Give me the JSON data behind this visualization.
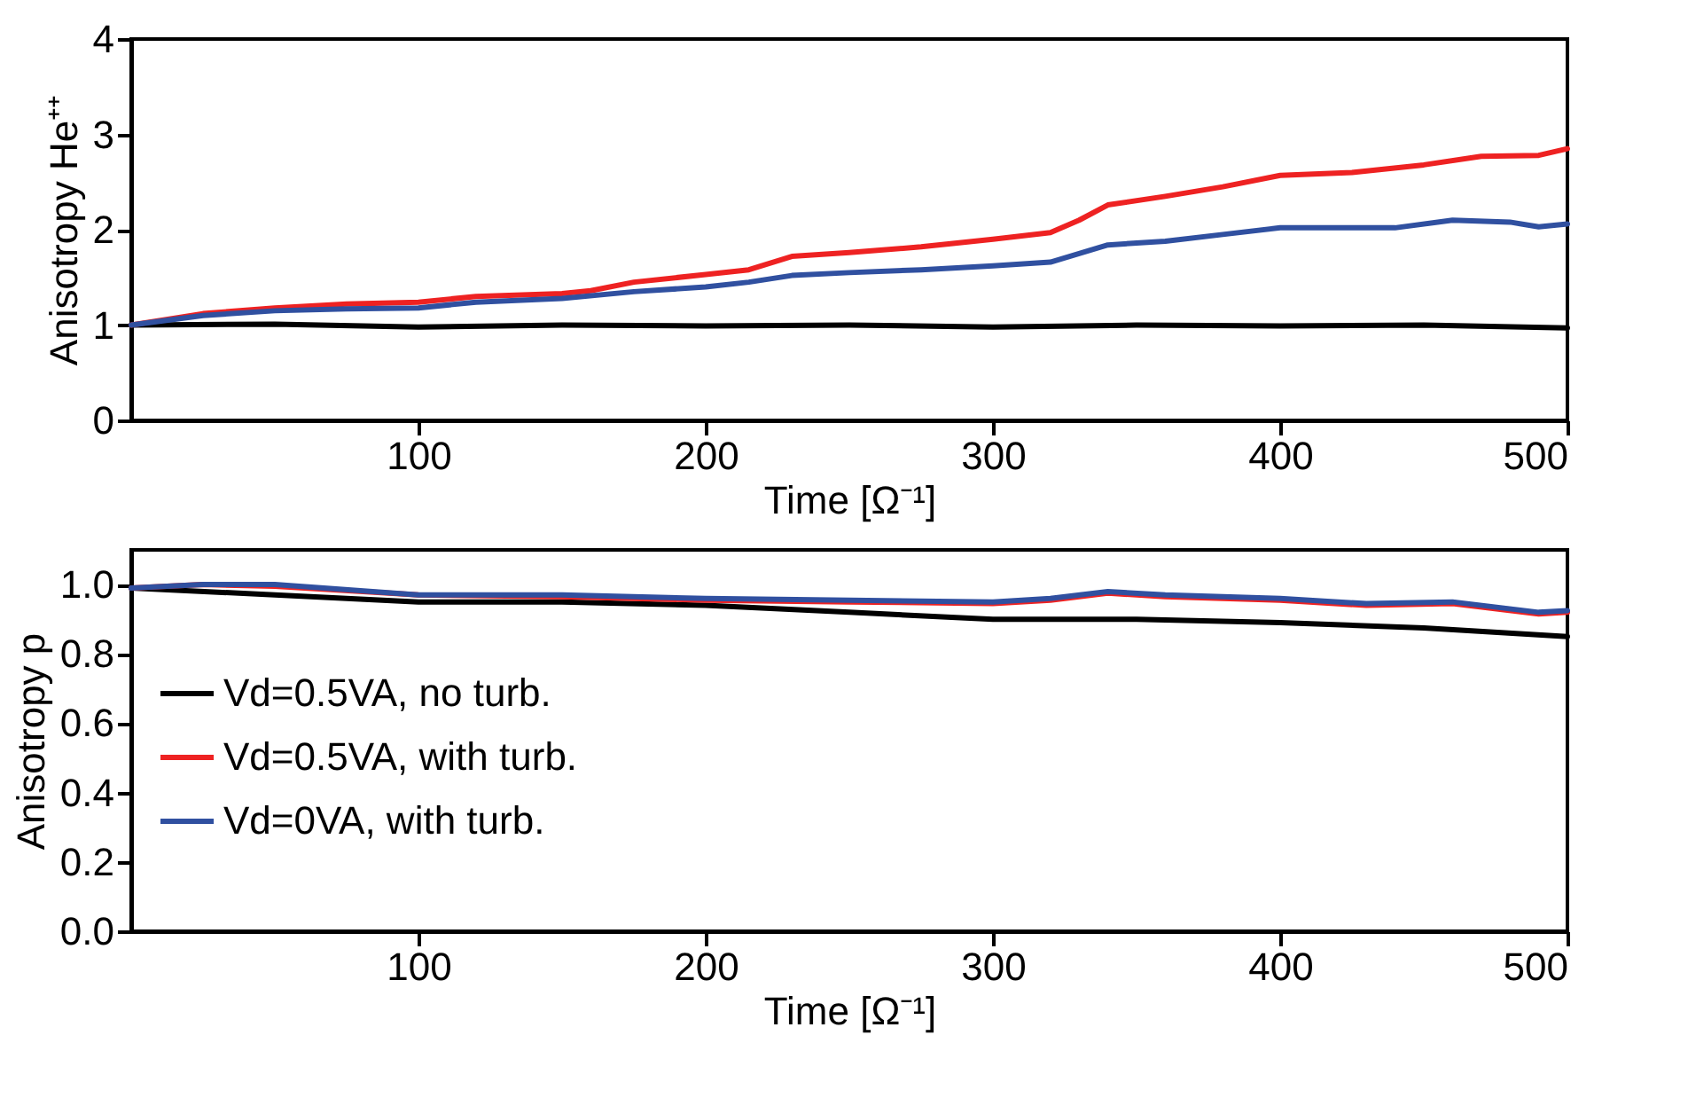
{
  "chart_data": [
    {
      "type": "line",
      "ylabel": "Anisotropy He⁺⁺",
      "xlabel": "Time [Ω⁻¹]",
      "xlim": [
        0,
        500
      ],
      "xticks": [
        100,
        200,
        300,
        400,
        500
      ],
      "ylim": [
        0,
        4
      ],
      "yticks": [
        0,
        1,
        2,
        3,
        4
      ],
      "grid": false,
      "legend": false,
      "series": [
        {
          "color": "#000000",
          "x": [
            0,
            50,
            100,
            150,
            200,
            250,
            300,
            350,
            400,
            450,
            500
          ],
          "values": [
            1.0,
            1.01,
            0.98,
            1.0,
            0.99,
            1.0,
            0.98,
            1.0,
            0.99,
            1.0,
            0.97
          ]
        },
        {
          "color": "#ee2222",
          "x": [
            0,
            25,
            50,
            75,
            100,
            120,
            150,
            160,
            175,
            200,
            215,
            230,
            250,
            275,
            300,
            320,
            330,
            340,
            360,
            380,
            400,
            425,
            450,
            470,
            490,
            500
          ],
          "values": [
            1.0,
            1.12,
            1.18,
            1.22,
            1.24,
            1.3,
            1.33,
            1.36,
            1.45,
            1.53,
            1.58,
            1.72,
            1.76,
            1.82,
            1.9,
            1.97,
            2.1,
            2.26,
            2.35,
            2.45,
            2.57,
            2.6,
            2.68,
            2.77,
            2.78,
            2.85
          ]
        },
        {
          "color": "#3050a0",
          "x": [
            0,
            25,
            50,
            75,
            100,
            120,
            150,
            175,
            200,
            215,
            230,
            250,
            275,
            300,
            320,
            340,
            360,
            380,
            400,
            420,
            440,
            460,
            480,
            490,
            500
          ],
          "values": [
            1.0,
            1.1,
            1.15,
            1.17,
            1.18,
            1.24,
            1.28,
            1.35,
            1.4,
            1.45,
            1.52,
            1.55,
            1.58,
            1.62,
            1.66,
            1.84,
            1.88,
            1.95,
            2.02,
            2.02,
            2.02,
            2.1,
            2.08,
            2.03,
            2.06
          ]
        }
      ]
    },
    {
      "type": "line",
      "ylabel": "Anisotropy p",
      "xlabel": "Time [Ω⁻¹]",
      "xlim": [
        0,
        500
      ],
      "xticks": [
        100,
        200,
        300,
        400,
        500
      ],
      "ylim": [
        0,
        1.1
      ],
      "yticks": [
        {
          "value": 0,
          "label": "0.0"
        },
        0.2,
        0.4,
        0.6,
        0.8,
        {
          "value": 1,
          "label": "1.0"
        }
      ],
      "grid": false,
      "legend": "left",
      "series": [
        {
          "name": "Vd=0.5VA, no turb.",
          "color": "#000000",
          "x": [
            0,
            50,
            100,
            150,
            200,
            250,
            300,
            350,
            400,
            450,
            500
          ],
          "values": [
            0.99,
            0.97,
            0.95,
            0.95,
            0.94,
            0.92,
            0.9,
            0.9,
            0.89,
            0.875,
            0.85
          ]
        },
        {
          "name": "Vd=0.5VA, with turb.",
          "color": "#ee2222",
          "x": [
            0,
            25,
            50,
            100,
            150,
            200,
            250,
            300,
            320,
            340,
            360,
            400,
            430,
            460,
            490,
            500
          ],
          "values": [
            0.99,
            1.0,
            0.995,
            0.97,
            0.965,
            0.955,
            0.95,
            0.945,
            0.955,
            0.975,
            0.965,
            0.955,
            0.94,
            0.945,
            0.915,
            0.92
          ]
        },
        {
          "name": "Vd=0VA, with turb.",
          "color": "#3050a0",
          "x": [
            0,
            25,
            50,
            100,
            150,
            200,
            250,
            300,
            320,
            340,
            360,
            400,
            430,
            460,
            490,
            500
          ],
          "values": [
            0.99,
            1.0,
            1.0,
            0.97,
            0.97,
            0.96,
            0.955,
            0.95,
            0.96,
            0.98,
            0.97,
            0.96,
            0.945,
            0.95,
            0.92,
            0.925
          ]
        }
      ]
    }
  ]
}
